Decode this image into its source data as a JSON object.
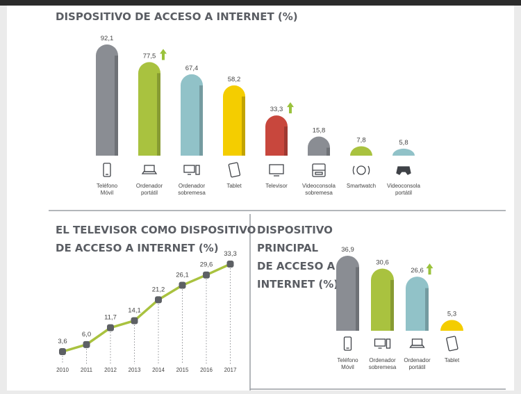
{
  "colors": {
    "gray": "#8a8d93",
    "green": "#a9c23f",
    "teal": "#91c2c8",
    "yellow": "#f4cd00",
    "red": "#c8473d",
    "arrow": "#9ac23c",
    "line": "#a9c23f",
    "marker": "#5d6064",
    "divider": "#9a9da3"
  },
  "chart_data": [
    {
      "type": "bar",
      "title": "DISPOSITIVO DE ACCESO A INTERNET (%)",
      "categories": [
        [
          "Teléfono",
          "Móvil"
        ],
        [
          "Ordenador",
          "portátil"
        ],
        [
          "Ordenador",
          "sobremesa"
        ],
        [
          "Tablet"
        ],
        [
          "Televisor"
        ],
        [
          "Videoconsola",
          "sobremesa"
        ],
        [
          "Smartwatch"
        ],
        [
          "Videoconsola",
          "portátil"
        ]
      ],
      "values": [
        92.1,
        77.5,
        67.4,
        58.2,
        33.3,
        15.8,
        7.8,
        5.8
      ],
      "value_labels": [
        "92,1",
        "77,5",
        "67,4",
        "58,2",
        "33,3",
        "15,8",
        "7,8",
        "5,8"
      ],
      "bar_colors": [
        "gray",
        "green",
        "teal",
        "yellow",
        "red",
        "gray",
        "green",
        "teal"
      ],
      "up_arrows": [
        false,
        true,
        false,
        false,
        true,
        false,
        false,
        false
      ],
      "icons": [
        "phone-icon",
        "laptop-icon",
        "desktop-icon",
        "tablet-icon",
        "tv-icon",
        "console-icon",
        "smartwatch-icon",
        "gamepad-icon"
      ],
      "ylim": [
        0,
        100
      ]
    },
    {
      "type": "line",
      "title": [
        "EL TELEVISOR COMO DISPOSITIVO",
        "DE ACCESO A INTERNET (%)"
      ],
      "x": [
        "2010",
        "2011",
        "2012",
        "2013",
        "2014",
        "2015",
        "2016",
        "2017"
      ],
      "values": [
        3.6,
        6.0,
        11.7,
        14.1,
        21.2,
        26.1,
        29.6,
        33.3
      ],
      "value_labels": [
        "3,6",
        "6,0",
        "11,7",
        "14,1",
        "21,2",
        "26,1",
        "29,6",
        "33,3"
      ],
      "ylim": [
        0,
        35
      ]
    },
    {
      "type": "bar",
      "title": [
        "DISPOSITIVO",
        "PRINCIPAL",
        "DE ACCESO A",
        "INTERNET (%)"
      ],
      "categories": [
        [
          "Teléfono",
          "Móvil"
        ],
        [
          "Ordenador",
          "sobremesa"
        ],
        [
          "Ordenador",
          "portátil"
        ],
        [
          "Tablet"
        ]
      ],
      "values": [
        36.9,
        30.6,
        26.6,
        5.3
      ],
      "value_labels": [
        "36,9",
        "30,6",
        "26,6",
        "5,3"
      ],
      "bar_colors": [
        "gray",
        "green",
        "teal",
        "yellow"
      ],
      "up_arrows": [
        false,
        false,
        true,
        false
      ],
      "icons": [
        "phone-icon",
        "desktop-icon",
        "laptop-icon",
        "tablet-icon"
      ],
      "ylim": [
        0,
        40
      ]
    }
  ]
}
